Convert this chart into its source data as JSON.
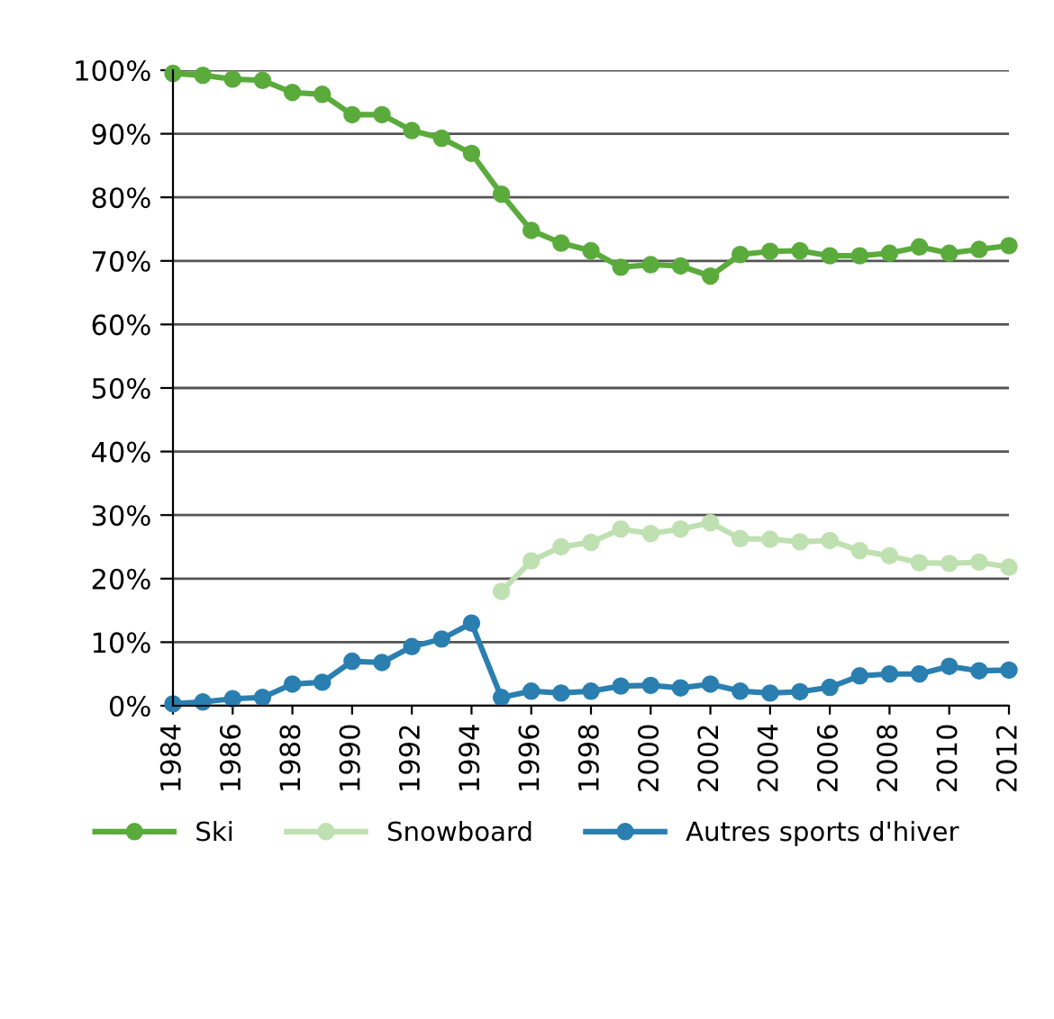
{
  "chart_data": {
    "type": "line",
    "x": [
      1984,
      1985,
      1986,
      1987,
      1988,
      1989,
      1990,
      1991,
      1992,
      1993,
      1994,
      1995,
      1996,
      1997,
      1998,
      1999,
      2000,
      2001,
      2002,
      2003,
      2004,
      2005,
      2006,
      2007,
      2008,
      2009,
      2010,
      2011,
      2012
    ],
    "series": [
      {
        "name": "Ski",
        "color": "#5aab3c",
        "values": [
          99.5,
          99.2,
          98.6,
          98.4,
          96.5,
          96.2,
          93,
          93,
          90.5,
          89.3,
          86.9,
          80.5,
          74.8,
          72.8,
          71.6,
          69,
          69.4,
          69.2,
          67.6,
          71,
          71.5,
          71.6,
          70.8,
          70.8,
          71.2,
          72.2,
          71.2,
          71.8,
          72.4
        ]
      },
      {
        "name": "Snowboard",
        "color": "#bfe0b0",
        "values": [
          null,
          null,
          null,
          null,
          null,
          null,
          null,
          null,
          null,
          null,
          null,
          18,
          22.8,
          25,
          25.7,
          27.8,
          27.1,
          27.8,
          28.8,
          26.3,
          26.2,
          25.8,
          26,
          24.4,
          23.6,
          22.5,
          22.4,
          22.6,
          21.8
        ]
      },
      {
        "name": "Autres sports d'hiver",
        "color": "#2a7fb0",
        "values": [
          0.3,
          0.6,
          1.1,
          1.3,
          3.4,
          3.7,
          7,
          6.8,
          9.3,
          10.5,
          13,
          1.3,
          2.3,
          2,
          2.3,
          3.1,
          3.2,
          2.8,
          3.4,
          2.3,
          2,
          2.2,
          2.9,
          4.7,
          5,
          5,
          6.2,
          5.5,
          5.6
        ]
      }
    ],
    "xlim": [
      1984,
      2012
    ],
    "xticks": [
      1984,
      1986,
      1988,
      1990,
      1992,
      1994,
      1996,
      1998,
      2000,
      2002,
      2004,
      2006,
      2008,
      2010,
      2012
    ],
    "ylim": [
      0,
      100
    ],
    "yticks": [
      {
        "value": 0,
        "label": "0%"
      },
      {
        "value": 10,
        "label": "10%"
      },
      {
        "value": 20,
        "label": "20%"
      },
      {
        "value": 30,
        "label": "30%"
      },
      {
        "value": 40,
        "label": "40%"
      },
      {
        "value": 50,
        "label": "50%"
      },
      {
        "value": 60,
        "label": "60%"
      },
      {
        "value": 70,
        "label": "70%"
      },
      {
        "value": 80,
        "label": "80%"
      },
      {
        "value": 90,
        "label": "90%"
      },
      {
        "value": 100,
        "label": "100%"
      }
    ],
    "grid": "y",
    "legend": "bottom",
    "marker": "circle",
    "line_style": "solid"
  }
}
